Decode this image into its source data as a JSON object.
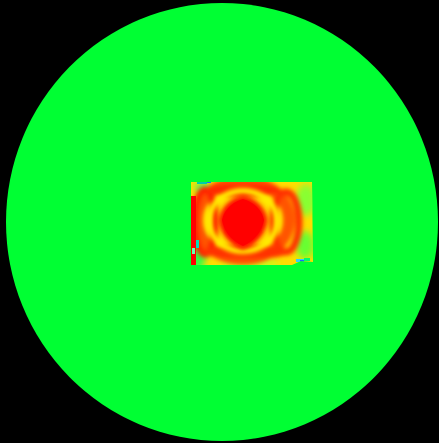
{
  "scene": {
    "description_kind": "false-color-field-map",
    "colors": {
      "background": "#000000",
      "disc_field": "#00ff33",
      "hotspot_core": "#ff0000",
      "hotspot_ring": "#ff2a00",
      "hotspot_mid": "#ffcc00",
      "hotspot_warm": "#ffee00",
      "hotspot_cool": "#88ff00",
      "edge_cyan": "#00ddbb",
      "edge_blue": "#2266ff"
    }
  }
}
